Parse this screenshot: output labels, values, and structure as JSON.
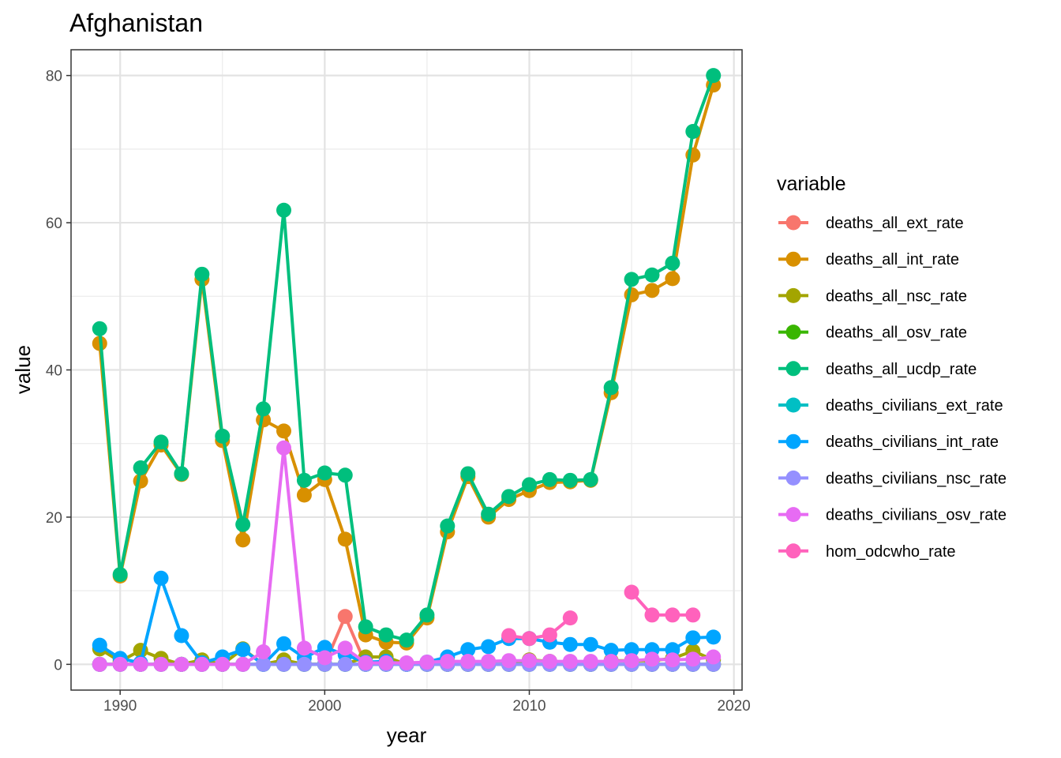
{
  "chart_data": {
    "type": "line",
    "title": "Afghanistan",
    "xlabel": "year",
    "ylabel": "value",
    "xlim": [
      1987.6,
      2020.4
    ],
    "ylim": [
      -3.5,
      83.5
    ],
    "x_ticks": [
      1990,
      2000,
      2010,
      2020
    ],
    "x_minor": [
      1985,
      1995,
      2005,
      2015
    ],
    "y_ticks": [
      0,
      20,
      40,
      60,
      80
    ],
    "y_minor": [
      10,
      30,
      50,
      70
    ],
    "grid": true,
    "legend": {
      "title": "variable",
      "position": "right"
    },
    "x": [
      1989,
      1990,
      1991,
      1992,
      1993,
      1994,
      1995,
      1996,
      1997,
      1998,
      1999,
      2000,
      2001,
      2002,
      2003,
      2004,
      2005,
      2006,
      2007,
      2008,
      2009,
      2010,
      2011,
      2012,
      2013,
      2014,
      2015,
      2016,
      2017,
      2018,
      2019
    ],
    "series": [
      {
        "name": "deaths_all_ext_rate",
        "color": "#F8766D",
        "values": [
          0,
          0,
          0,
          0,
          0,
          0,
          0,
          0,
          0,
          0,
          0,
          0,
          6.5,
          0,
          0,
          0,
          0,
          0,
          0,
          0,
          0,
          0,
          0,
          0,
          0,
          0,
          0,
          0,
          0,
          0,
          0
        ]
      },
      {
        "name": "deaths_all_int_rate",
        "color": "#D89000",
        "values": [
          43.6,
          12,
          24.9,
          29.8,
          25.8,
          52.3,
          30.4,
          16.9,
          33.2,
          31.7,
          23,
          25.1,
          17,
          4,
          3,
          2.9,
          6.3,
          18,
          25.5,
          20,
          22.4,
          23.6,
          24.7,
          24.8,
          25,
          36.9,
          50.2,
          50.8,
          52.4,
          69.2,
          78.7
        ]
      },
      {
        "name": "deaths_all_nsc_rate",
        "color": "#A3A500",
        "values": [
          2.1,
          0.4,
          1.9,
          0.8,
          0,
          0.6,
          0,
          2.1,
          0,
          0.6,
          0,
          0,
          0,
          1,
          1,
          0,
          0,
          0,
          0,
          0,
          0,
          0.6,
          0.4,
          0,
          0,
          0.5,
          0.5,
          0.5,
          0.8,
          1.8,
          0.6
        ]
      },
      {
        "name": "deaths_all_osv_rate",
        "color": "#39B600",
        "values": [
          0,
          0,
          0,
          0,
          0,
          0,
          0,
          0,
          0,
          0,
          0,
          0,
          0,
          0,
          0,
          0,
          0,
          0,
          0,
          0,
          0,
          0,
          0,
          0,
          0,
          0,
          0,
          0,
          0,
          0,
          0
        ]
      },
      {
        "name": "deaths_all_ucdp_rate",
        "color": "#00BF7D",
        "values": [
          45.6,
          12.2,
          26.7,
          30.2,
          25.9,
          53,
          31,
          19,
          34.7,
          61.7,
          25,
          26,
          25.7,
          5.1,
          4,
          3.3,
          6.7,
          18.8,
          25.9,
          20.4,
          22.8,
          24.4,
          25.1,
          25,
          25.1,
          37.6,
          52.3,
          52.9,
          54.5,
          72.4,
          80
        ]
      },
      {
        "name": "deaths_civilians_ext_rate",
        "color": "#00BFC4",
        "values": [
          0,
          0,
          0,
          0,
          0,
          0,
          0,
          0,
          0,
          0,
          0,
          0,
          0,
          0,
          0,
          0,
          0,
          0,
          0,
          0,
          0,
          0,
          0,
          0,
          0,
          0,
          0,
          0,
          0,
          0,
          0
        ]
      },
      {
        "name": "deaths_civilians_int_rate",
        "color": "#00A5FF",
        "values": [
          2.6,
          0.8,
          0.2,
          11.7,
          3.9,
          0.2,
          1,
          2,
          0,
          2.8,
          0.9,
          2.3,
          1.3,
          0.3,
          0.4,
          0,
          0.3,
          1,
          2,
          2.4,
          3.5,
          3.5,
          3,
          2.7,
          2.7,
          1.9,
          2,
          2,
          2,
          3.6,
          3.7
        ]
      },
      {
        "name": "deaths_civilians_nsc_rate",
        "color": "#9590FF",
        "values": [
          0,
          0,
          0,
          0,
          0,
          0,
          0,
          0,
          0,
          0,
          0,
          0,
          0,
          0,
          0,
          0,
          0,
          0,
          0,
          0,
          0,
          0,
          0,
          0,
          0,
          0,
          0,
          0,
          0,
          0,
          0
        ]
      },
      {
        "name": "deaths_civilians_osv_rate",
        "color": "#E76BF3",
        "values": [
          0,
          0,
          0,
          0,
          0,
          0,
          0,
          0,
          1.7,
          29.4,
          2.2,
          0.9,
          2.2,
          0.2,
          0.2,
          0.2,
          0.3,
          0.4,
          0.4,
          0.4,
          0.5,
          0.5,
          0.4,
          0.4,
          0.4,
          0.4,
          0.5,
          0.7,
          0.6,
          0.7,
          1
        ]
      },
      {
        "name": "hom_odcwho_rate",
        "color": "#FF62BC",
        "values": [
          null,
          null,
          null,
          null,
          null,
          null,
          null,
          null,
          null,
          null,
          null,
          null,
          null,
          null,
          null,
          null,
          null,
          null,
          null,
          null,
          3.9,
          3.5,
          4,
          6.3,
          null,
          null,
          9.8,
          6.7,
          6.7,
          6.7,
          null
        ]
      }
    ]
  }
}
